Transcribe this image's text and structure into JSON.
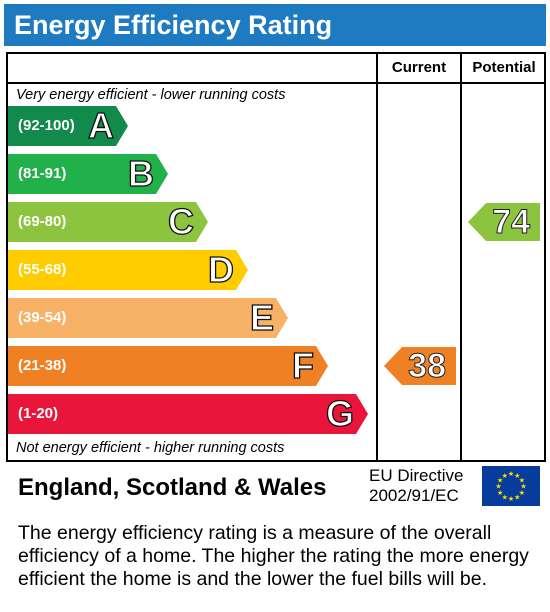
{
  "header": {
    "title": "Energy Efficiency Rating"
  },
  "columns": {
    "current": "Current",
    "potential": "Potential"
  },
  "notes": {
    "top": "Very energy efficient - lower running costs",
    "bottom": "Not energy efficient - higher running costs"
  },
  "chart_data": {
    "type": "bar",
    "categories": [
      "A",
      "B",
      "C",
      "D",
      "E",
      "F",
      "G"
    ],
    "bands": [
      {
        "letter": "A",
        "range": "(92-100)",
        "color": "#118a4b"
      },
      {
        "letter": "B",
        "range": "(81-91)",
        "color": "#22b04b"
      },
      {
        "letter": "C",
        "range": "(69-80)",
        "color": "#8cc43f"
      },
      {
        "letter": "D",
        "range": "(55-68)",
        "color": "#ffcc00"
      },
      {
        "letter": "E",
        "range": "(39-54)",
        "color": "#f7b267"
      },
      {
        "letter": "F",
        "range": "(21-38)",
        "color": "#ef8023"
      },
      {
        "letter": "G",
        "range": "(1-20)",
        "color": "#e9153b"
      }
    ],
    "current": {
      "value": 38,
      "band": "F",
      "color": "#ef8023"
    },
    "potential": {
      "value": 74,
      "band": "C",
      "color": "#8cc43f"
    }
  },
  "footer": {
    "region": "England, Scotland & Wales",
    "directive_line1": "EU Directive",
    "directive_line2": "2002/91/EC",
    "flag_icon": "eu-flag-icon"
  },
  "description": "The energy efficiency rating is a measure of the overall efficiency of a home. The higher the rating the more energy efficient the home is and the lower the fuel bills will be."
}
